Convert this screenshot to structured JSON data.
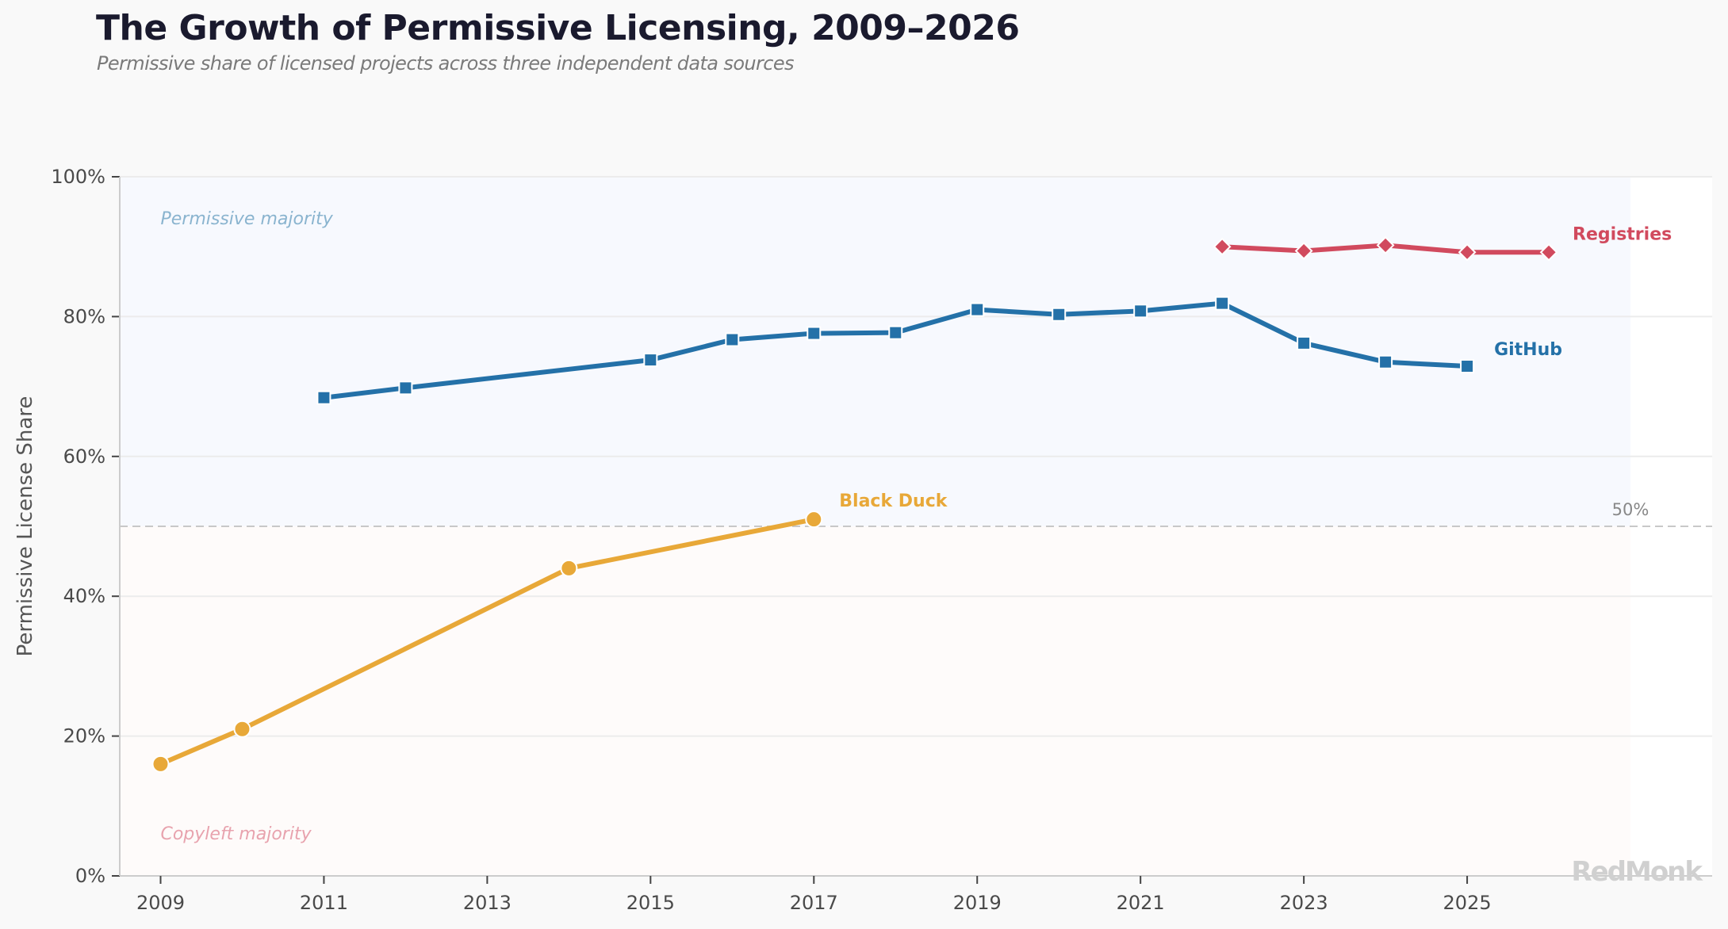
{
  "header": {
    "title": "The Growth of Permissive Licensing, 2009–2026",
    "subtitle": "Permissive share of licensed projects across three independent data sources"
  },
  "watermark": "RedMonk",
  "colors": {
    "github": "#2471a8",
    "registries": "#d14a5e",
    "black_duck": "#e8a838",
    "permissive_zone": "#f7f9fe",
    "copyleft_zone": "#fefbfa",
    "permissive_zone_label": "#8ab4cf",
    "copyleft_zone_label": "#e8a3ae",
    "grid": "#ececec",
    "reference_line": "#c8c8c8"
  },
  "chart_data": {
    "type": "line",
    "title": "The Growth of Permissive Licensing, 2009–2026",
    "subtitle": "Permissive share of licensed projects across three independent data sources",
    "xlabel": "",
    "ylabel": "Permissive License Share",
    "xlim": [
      2008.5,
      2028
    ],
    "ylim": [
      0,
      100
    ],
    "x_ticks": [
      2009,
      2011,
      2013,
      2015,
      2017,
      2019,
      2021,
      2023,
      2025
    ],
    "y_ticks": [
      0,
      20,
      40,
      60,
      80,
      100
    ],
    "y_tick_format": "percent",
    "grid": "horizontal",
    "legend": "inline-labels-at-line-ends",
    "reference_line": {
      "value": 50,
      "label": "50%",
      "style": "dashed"
    },
    "zones": [
      {
        "label": "Permissive majority",
        "from": 50,
        "to": 100,
        "x_end": 2027
      },
      {
        "label": "Copyleft majority",
        "from": 0,
        "to": 50,
        "x_end": 2027
      }
    ],
    "series": [
      {
        "name": "GitHub",
        "marker": "square",
        "x": [
          2011,
          2012,
          2015,
          2016,
          2017,
          2018,
          2019,
          2020,
          2021,
          2022,
          2023,
          2024,
          2025
        ],
        "values": [
          68.4,
          69.8,
          73.8,
          76.7,
          77.6,
          77.7,
          81.0,
          80.3,
          80.8,
          81.9,
          76.2,
          73.5,
          72.9
        ]
      },
      {
        "name": "Registries",
        "marker": "diamond",
        "x": [
          2022,
          2023,
          2024,
          2025,
          2026
        ],
        "values": [
          90.0,
          89.4,
          90.2,
          89.2,
          89.2
        ]
      },
      {
        "name": "Black Duck",
        "marker": "circle",
        "x": [
          2009,
          2010,
          2014,
          2017
        ],
        "values": [
          16,
          21,
          44,
          51
        ]
      }
    ]
  }
}
